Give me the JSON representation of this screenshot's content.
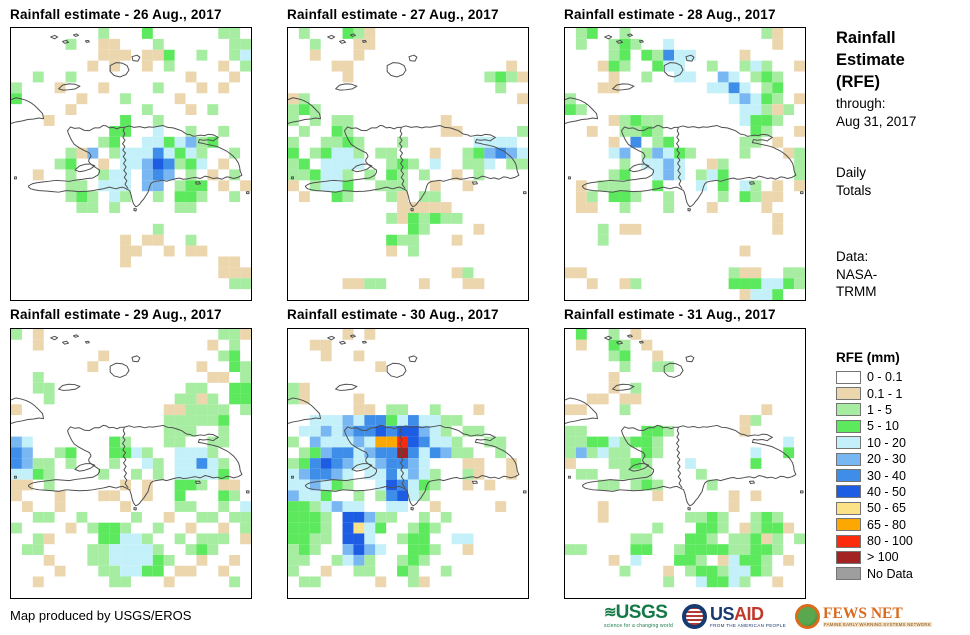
{
  "panels": [
    {
      "title": "Rainfall estimate - 26 Aug., 2017",
      "grid": [
        "........g...G......gg.",
        ".....g..TT...g......gg",
        "........TTT.TTG..g..gc",
        ".......T.T..T.g....T.g",
        "..g..g..........T...T.",
        "g...T...T....g...T.T..",
        "G.....T...g....T......",
        ".....T......g...T.g...",
        "...T......G..g........",
        ".........GG..c..g..g..",
        "........gG..ccGcbgG...",
        ".....gTb.gcccBcGcg..g.",
        "....gG..T.ccbDBgGc.T..",
        "..T..g..gcc.bBb.g.T.g.",
        ".....gg.ccc.bb.gGG.T.T",
        ".....gGg.cg..g.GGg..g.",
        "......gg.g.....gg.....",
        "......................",
        ".............g........",
        "..........T.TT..g.....",
        "..........TT..T.TT....",
        "..........T........TT.",
        "...................TTT",
        "....................gg",
        "......................"
      ]
    },
    {
      "title": "Rainfall estimate - 27 Aug., 2017",
      "grid": [
        ".g...GgT..............",
        "..g...TT..............",
        "..T...T...............",
        "....TT..............T.",
        ".....T............gGgT",
        "...................g..",
        "Tg...................T",
        "gGg...................",
        "g.g.gg........T.......",
        ".g..Gg........TT.....g",
        "g..ggGg...g......cccc.",
        "G.gGccg.gg...T..gGbBbc",
        "gG.cccc..gGg.c..ggc.gg",
        "ggGccg.g.Gg.g..T.g....",
        "T.gccG..ggg..T..T.....",
        ".T..Gg...gT.gg........",
        "..........TTTTT.......",
        ".........gTGgGgg......",
        "...........Gg....T....",
        ".........Ggg...T......",
        ".........T.g..........",
        "......................",
        "...............Tg.....",
        ".....TTgg...T...TT....",
        "......................"
      ]
    },
    {
      "title": "Rainfall estimate - 28 Aug., 2017",
      "grid": [
        ".gG..g............gT..",
        ".g..gGg..c.........T..",
        "....gG.GgBcc....T.....",
        "...TGg..Gcc..g..gcg..T",
        "....T..g..cc..bc.gGg..",
        "...TT........ccBc.gG..",
        "g..............cbcGg.T",
        "Gg..............ccgTg.",
        "....TgGgg.......cGGg..",
        "..T..ggGg........Gg..T",
        "....T.B.gG......gg.T..",
        "....cb.gbcGg....g...Tg",
        ".....g.ccbc..Tg......g",
        "....gG..cbc.gcG......g",
        ".T.ggg..G...c.G.cg.T.T",
        ".Tg.GGg..g....g.GgTT..",
        ".TT..g...g...T....T...",
        "...................T..",
        "...g.TT............T..",
        "...g..................",
        "................T.....",
        "......................",
        "TT.............gTT..gg",
        "..T..Tg........GGGccGg",
        "................TccG.."
      ]
    },
    {
      "title": "Rainfall estimate - 29 Aug., 2017",
      "grid": [
        "g.T................ggT",
        "..T...............T.g.",
        "........T..........gG.",
        ".......T.........T..Gg",
        "..g...............TT.g",
        "..gg............gg..GG",
        "...g...........ggTg.GG",
        "T.............TTgggg.g",
        "..............gggggG..",
        "..............ggg..g..",
        "bc.......Gg...gg..gg..",
        "Bb..gG...GGcg..cccg...",
        "Bbgg.g...g..cg.ccBcg..",
        "ccGg....g..g.g.ccccG..",
        "TT.g......T.T..GGg.TT.",
        "T...T...TT..T..G...Gg.",
        ".T..T.....T....gg..g.c",
        "..gg..g....g..T..gg.gg",
        "g....T.gGGg..g..T..T.g",
        "..gT....GGccg..g.ggg.T",
        ".gg....ggccccg..gGg...",
        "...T...ggccccGg..T..T.",
        "....T...ggccGG.TT..T..",
        "..T......gg...T.....g.",
        "......................"
      ]
    },
    {
      "title": "Rainfall estimate - 30 Aug., 2017",
      "grid": [
        ".....T.T..............",
        "..TT..................",
        "...T..T...............",
        "........T.............",
        "......................",
        "gT....................",
        "gT....T...............",
        "......TT.gg..g...T....",
        "..cccbcBBGcBccgg......",
        ".ccbcbBBDBDDbcg.gg....",
        "g.bcccbcOORDBccg..gg..",
        ".gGbBBcbBBMBcBbgg..g..",
        "gGBDBbccbBBbc...TT..T.",
        "cbBBbc.ccBcbcg..gT..T.",
        "ccbcGg..cDBcGg..T.T...",
        "bccG..g.gBDcg.........",
        "GGgcbcc..cc..T.....T..",
        "GGGg.DDbgg..g.g.......",
        "GGGg.DycG..gGg........",
        "GGgg.DDc..gGG..cc.....",
        "gGg..bDbc..GGg..T.....",
        "gg..gcbg..gGg.........",
        "g..T..gg..Gg..g.......",
        ".gg.....T..gT.........",
        "......................"
      ]
    },
    {
      "title": "Rainfall estimate - 31 Aug., 2017",
      "grid": [
        ".G..g.T...............",
        ".T..Gg.T..............",
        "....gG..T.............",
        ".....g..gg............",
        "....T.................",
        "....T.g...............",
        "..TT.TT...............",
        "TT...g............T...",
        "................Tg....",
        "gg.....GGg......T.....",
        "ggGGcgGGg...........c.",
        "gbgcgg.Gg........c..G.",
        "T...ggGg...c.....G....",
        ".gg..ggg....g.........",
        "...gg.gGg....g........",
        "........T......T.T....",
        "...T...........T......",
        "...T.......ggGg..gGg..",
        "........g...GGg.TgGGT.",
        "......gg...GGg.ggGTg.g",
        "gg....GG..gGGGGggGGg..",
        "....T.c...GGg.TcGGg.T.",
        ".....g...T.gGGgccGg...",
        ".........g..cGGcg..T..",
        "......................"
      ]
    }
  ],
  "sidebar": {
    "title_lines": [
      "Rainfall",
      "Estimate",
      "(RFE)"
    ],
    "through_lines": [
      "through:",
      "Aug 31, 2017"
    ],
    "totals_lines": [
      "Daily",
      "Totals"
    ],
    "data_lines": [
      "Data:",
      "NASA-",
      "TRMM"
    ]
  },
  "legend": {
    "title": "RFE (mm)",
    "items": [
      {
        "code": ".",
        "label": "0 - 0.1",
        "color": "#FFFFFF"
      },
      {
        "code": "T",
        "label": "0.1 - 1",
        "color": "#EBD6AE"
      },
      {
        "code": "g",
        "label": "1 - 5",
        "color": "#A6EDA2"
      },
      {
        "code": "G",
        "label": "5 - 10",
        "color": "#5DE95D"
      },
      {
        "code": "c",
        "label": "10 - 20",
        "color": "#C4F1F9"
      },
      {
        "code": "b",
        "label": "20 - 30",
        "color": "#79B7F2"
      },
      {
        "code": "B",
        "label": "30 - 40",
        "color": "#3E8EE9"
      },
      {
        "code": "D",
        "label": "40 - 50",
        "color": "#1D5DE3"
      },
      {
        "code": "y",
        "label": "50 - 65",
        "color": "#FBE187"
      },
      {
        "code": "O",
        "label": "65 - 80",
        "color": "#FCA800"
      },
      {
        "code": "R",
        "label": "80 - 100",
        "color": "#FB2B0B"
      },
      {
        "code": "M",
        "label": "> 100",
        "color": "#A32222"
      },
      {
        "code": "N",
        "label": "No Data",
        "color": "#9E9E9E"
      }
    ]
  },
  "footer": {
    "credit": "Map produced by USGS/EROS",
    "logos": [
      {
        "name": "USGS",
        "tagline": "science for a changing world"
      },
      {
        "name_us": "US",
        "name_aid": "AID",
        "tagline": "FROM THE AMERICAN PEOPLE"
      },
      {
        "name": "FEWS NET",
        "tagline": "FAMINE EARLY WARNING SYSTEMS NETWORK"
      }
    ]
  },
  "colors": {
    "coastline": "#4F4F4F",
    "panel_border": "#000000"
  }
}
